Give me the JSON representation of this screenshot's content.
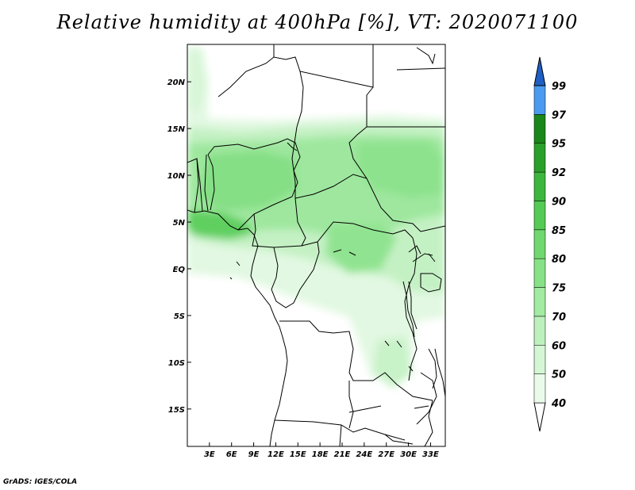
{
  "title": "Relative humidity at 400hPa [%], VT: 2020071100",
  "footer": "GrADS: IGES/COLA",
  "map": {
    "lon_range": [
      0,
      35
    ],
    "lat_range": [
      -19,
      24
    ],
    "lat_ticks": [
      {
        "value": 20,
        "label": "20N"
      },
      {
        "value": 15,
        "label": "15N"
      },
      {
        "value": 10,
        "label": "10N"
      },
      {
        "value": 5,
        "label": "5N"
      },
      {
        "value": 0,
        "label": "EQ"
      },
      {
        "value": -5,
        "label": "5S"
      },
      {
        "value": -10,
        "label": "10S"
      },
      {
        "value": -15,
        "label": "15S"
      }
    ],
    "lon_ticks": [
      {
        "value": 3,
        "label": "3E"
      },
      {
        "value": 6,
        "label": "6E"
      },
      {
        "value": 9,
        "label": "9E"
      },
      {
        "value": 12,
        "label": "12E"
      },
      {
        "value": 15,
        "label": "15E"
      },
      {
        "value": 18,
        "label": "18E"
      },
      {
        "value": 21,
        "label": "21E"
      },
      {
        "value": 24,
        "label": "24E"
      },
      {
        "value": 27,
        "label": "27E"
      },
      {
        "value": 30,
        "label": "30E"
      },
      {
        "value": 33,
        "label": "33E"
      }
    ]
  },
  "colorbar": {
    "levels": [
      {
        "label": "40",
        "color": "#eafbea"
      },
      {
        "label": "50",
        "color": "#d4f6d4"
      },
      {
        "label": "60",
        "color": "#bdf0bd"
      },
      {
        "label": "70",
        "color": "#a3eaa3"
      },
      {
        "label": "75",
        "color": "#87e287"
      },
      {
        "label": "80",
        "color": "#6fd86f"
      },
      {
        "label": "85",
        "color": "#55ca55"
      },
      {
        "label": "90",
        "color": "#3db63d"
      },
      {
        "label": "92",
        "color": "#2a9f2a"
      },
      {
        "label": "95",
        "color": "#1a871a"
      },
      {
        "label": "97",
        "color": "#4a9af0"
      },
      {
        "label": "99",
        "color": "#2f74d6"
      }
    ],
    "below_color": "#ffffff",
    "above_color": "#1f5fc4"
  }
}
